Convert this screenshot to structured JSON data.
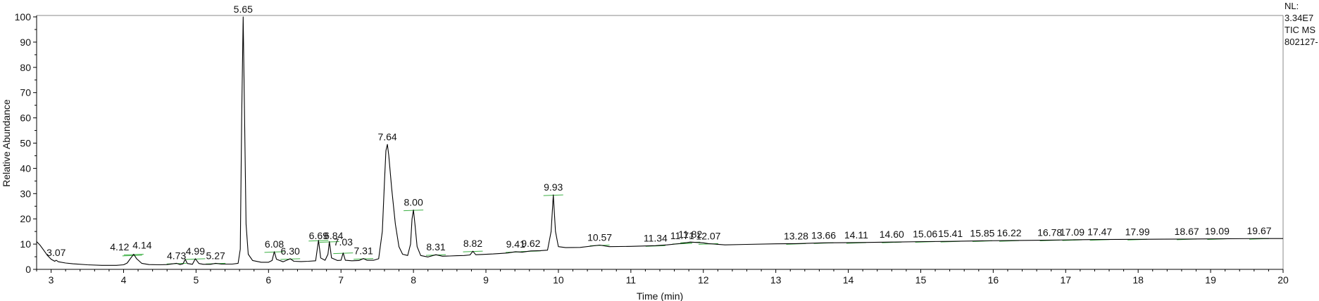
{
  "chart_data": {
    "type": "line",
    "xlabel": "Time (min)",
    "ylabel": "Relative Abundance",
    "xlim": [
      2.8,
      20.0
    ],
    "ylim": [
      0,
      100
    ],
    "x_ticks": [
      3,
      4,
      5,
      6,
      7,
      8,
      9,
      10,
      11,
      12,
      13,
      14,
      15,
      16,
      17,
      18,
      19,
      20
    ],
    "y_ticks": [
      0,
      10,
      20,
      30,
      40,
      50,
      60,
      70,
      80,
      90,
      100
    ],
    "series": [
      {
        "name": "TIC MS",
        "points": [
          [
            2.8,
            11
          ],
          [
            2.85,
            9.5
          ],
          [
            2.9,
            7.5
          ],
          [
            2.95,
            5.5
          ],
          [
            3.0,
            4.0
          ],
          [
            3.05,
            3.2
          ],
          [
            3.07,
            3.6
          ],
          [
            3.1,
            3.0
          ],
          [
            3.2,
            2.5
          ],
          [
            3.3,
            2.2
          ],
          [
            3.5,
            1.8
          ],
          [
            3.7,
            1.6
          ],
          [
            3.9,
            1.6
          ],
          [
            4.0,
            1.8
          ],
          [
            4.05,
            2.5
          ],
          [
            4.1,
            4.5
          ],
          [
            4.14,
            6.0
          ],
          [
            4.18,
            4.2
          ],
          [
            4.25,
            2.4
          ],
          [
            4.35,
            1.9
          ],
          [
            4.5,
            1.8
          ],
          [
            4.6,
            1.9
          ],
          [
            4.73,
            2.4
          ],
          [
            4.78,
            1.9
          ],
          [
            4.82,
            2.2
          ],
          [
            4.85,
            4.0
          ],
          [
            4.88,
            2.3
          ],
          [
            4.95,
            2.0
          ],
          [
            4.99,
            4.2
          ],
          [
            5.04,
            2.3
          ],
          [
            5.1,
            2.0
          ],
          [
            5.2,
            2.0
          ],
          [
            5.27,
            2.4
          ],
          [
            5.35,
            2.1
          ],
          [
            5.5,
            2.1
          ],
          [
            5.58,
            2.4
          ],
          [
            5.61,
            8.0
          ],
          [
            5.63,
            60.0
          ],
          [
            5.65,
            100.0
          ],
          [
            5.67,
            60.0
          ],
          [
            5.69,
            18.0
          ],
          [
            5.72,
            6.0
          ],
          [
            5.78,
            3.5
          ],
          [
            5.9,
            2.8
          ],
          [
            6.0,
            2.8
          ],
          [
            6.05,
            3.5
          ],
          [
            6.08,
            7.0
          ],
          [
            6.11,
            4.0
          ],
          [
            6.2,
            3.0
          ],
          [
            6.25,
            3.6
          ],
          [
            6.3,
            4.2
          ],
          [
            6.35,
            3.2
          ],
          [
            6.45,
            3.1
          ],
          [
            6.55,
            3.2
          ],
          [
            6.65,
            3.4
          ],
          [
            6.69,
            11.5
          ],
          [
            6.72,
            4.5
          ],
          [
            6.78,
            3.6
          ],
          [
            6.82,
            6.0
          ],
          [
            6.84,
            11.0
          ],
          [
            6.87,
            4.5
          ],
          [
            6.95,
            3.5
          ],
          [
            7.0,
            3.6
          ],
          [
            7.03,
            6.5
          ],
          [
            7.06,
            3.6
          ],
          [
            7.15,
            3.4
          ],
          [
            7.25,
            3.5
          ],
          [
            7.31,
            4.3
          ],
          [
            7.36,
            3.6
          ],
          [
            7.45,
            3.6
          ],
          [
            7.52,
            4.2
          ],
          [
            7.57,
            15.0
          ],
          [
            7.6,
            35.0
          ],
          [
            7.62,
            47.0
          ],
          [
            7.64,
            49.5
          ],
          [
            7.66,
            45.0
          ],
          [
            7.7,
            32.0
          ],
          [
            7.75,
            18.0
          ],
          [
            7.8,
            9.0
          ],
          [
            7.85,
            6.0
          ],
          [
            7.92,
            5.5
          ],
          [
            7.96,
            10.0
          ],
          [
            7.98,
            20.0
          ],
          [
            8.0,
            23.5
          ],
          [
            8.02,
            18.0
          ],
          [
            8.05,
            9.0
          ],
          [
            8.1,
            5.5
          ],
          [
            8.2,
            4.9
          ],
          [
            8.31,
            5.8
          ],
          [
            8.4,
            5.2
          ],
          [
            8.5,
            5.3
          ],
          [
            8.6,
            5.4
          ],
          [
            8.7,
            5.5
          ],
          [
            8.78,
            5.7
          ],
          [
            8.82,
            7.2
          ],
          [
            8.86,
            5.8
          ],
          [
            8.95,
            5.9
          ],
          [
            9.1,
            6.1
          ],
          [
            9.2,
            6.3
          ],
          [
            9.3,
            6.5
          ],
          [
            9.41,
            7.0
          ],
          [
            9.5,
            6.8
          ],
          [
            9.62,
            7.3
          ],
          [
            9.75,
            7.4
          ],
          [
            9.85,
            7.6
          ],
          [
            9.9,
            15.0
          ],
          [
            9.93,
            29.5
          ],
          [
            9.96,
            15.0
          ],
          [
            10.0,
            9.0
          ],
          [
            10.1,
            8.6
          ],
          [
            10.3,
            8.7
          ],
          [
            10.57,
            9.6
          ],
          [
            10.7,
            9.0
          ],
          [
            11.0,
            9.1
          ],
          [
            11.34,
            9.4
          ],
          [
            11.5,
            9.7
          ],
          [
            11.71,
            10.3
          ],
          [
            11.82,
            10.8
          ],
          [
            12.0,
            10.5
          ],
          [
            12.07,
            10.2
          ],
          [
            12.3,
            9.7
          ],
          [
            12.6,
            9.9
          ],
          [
            13.0,
            10.1
          ],
          [
            13.28,
            10.2
          ],
          [
            13.66,
            10.5
          ],
          [
            14.11,
            10.6
          ],
          [
            14.6,
            10.8
          ],
          [
            15.06,
            11.0
          ],
          [
            15.41,
            11.1
          ],
          [
            15.85,
            11.3
          ],
          [
            16.22,
            11.4
          ],
          [
            16.78,
            11.6
          ],
          [
            17.09,
            11.7
          ],
          [
            17.47,
            11.8
          ],
          [
            17.99,
            11.9
          ],
          [
            18.67,
            12.0
          ],
          [
            19.09,
            12.1
          ],
          [
            19.67,
            12.2
          ],
          [
            20.0,
            12.2
          ]
        ]
      }
    ],
    "peaks": [
      {
        "rt": 3.07,
        "label": "3.07",
        "y": 3.6
      },
      {
        "rt": 4.12,
        "label": "4.12",
        "y": 5.6
      },
      {
        "rt": 4.14,
        "label": "4.14",
        "y": 6.0
      },
      {
        "rt": 4.73,
        "label": "4.73",
        "y": 2.4
      },
      {
        "rt": 4.99,
        "label": "4.99",
        "y": 4.2
      },
      {
        "rt": 5.27,
        "label": "5.27",
        "y": 2.4
      },
      {
        "rt": 5.65,
        "label": "5.65",
        "y": 100.0
      },
      {
        "rt": 6.08,
        "label": "6.08",
        "y": 7.0
      },
      {
        "rt": 6.3,
        "label": "6.30",
        "y": 4.2
      },
      {
        "rt": 6.69,
        "label": "6.69",
        "y": 11.5
      },
      {
        "rt": 6.84,
        "label": "6.84",
        "y": 11.0
      },
      {
        "rt": 7.03,
        "label": "7.03",
        "y": 6.5
      },
      {
        "rt": 7.31,
        "label": "7.31",
        "y": 4.3
      },
      {
        "rt": 7.64,
        "label": "7.64",
        "y": 49.5
      },
      {
        "rt": 8.0,
        "label": "8.00",
        "y": 23.5
      },
      {
        "rt": 8.31,
        "label": "8.31",
        "y": 5.8
      },
      {
        "rt": 8.82,
        "label": "8.82",
        "y": 7.2
      },
      {
        "rt": 9.41,
        "label": "9.41",
        "y": 7.0
      },
      {
        "rt": 9.62,
        "label": "9.62",
        "y": 7.3
      },
      {
        "rt": 9.93,
        "label": "9.93",
        "y": 29.5
      },
      {
        "rt": 10.57,
        "label": "10.57",
        "y": 9.6
      },
      {
        "rt": 11.34,
        "label": "11.34",
        "y": 9.4
      },
      {
        "rt": 11.71,
        "label": "11.71",
        "y": 10.3
      },
      {
        "rt": 11.82,
        "label": "11.82",
        "y": 10.8
      },
      {
        "rt": 12.07,
        "label": "12.07",
        "y": 10.2
      },
      {
        "rt": 13.28,
        "label": "13.28",
        "y": 10.2
      },
      {
        "rt": 13.66,
        "label": "13.66",
        "y": 10.5
      },
      {
        "rt": 14.11,
        "label": "14.11",
        "y": 10.6
      },
      {
        "rt": 14.6,
        "label": "14.60",
        "y": 10.8
      },
      {
        "rt": 15.06,
        "label": "15.06",
        "y": 11.0
      },
      {
        "rt": 15.41,
        "label": "15.41",
        "y": 11.1
      },
      {
        "rt": 15.85,
        "label": "15.85",
        "y": 11.3
      },
      {
        "rt": 16.22,
        "label": "16.22",
        "y": 11.4
      },
      {
        "rt": 16.78,
        "label": "16.78",
        "y": 11.6
      },
      {
        "rt": 17.09,
        "label": "17.09",
        "y": 11.7
      },
      {
        "rt": 17.47,
        "label": "17.47",
        "y": 11.8
      },
      {
        "rt": 17.99,
        "label": "17.99",
        "y": 11.9
      },
      {
        "rt": 18.67,
        "label": "18.67",
        "y": 12.0
      },
      {
        "rt": 19.09,
        "label": "19.09",
        "y": 12.1
      },
      {
        "rt": 19.67,
        "label": "19.67",
        "y": 12.2
      }
    ],
    "line_color": "#000000",
    "baseline_marker_color": "#3cb043",
    "background": "#ffffff"
  },
  "info": {
    "nl_label": "NL:",
    "nl_value": "3.34E7",
    "scan_filter": "TIC  MS",
    "file_name": "802127-"
  }
}
